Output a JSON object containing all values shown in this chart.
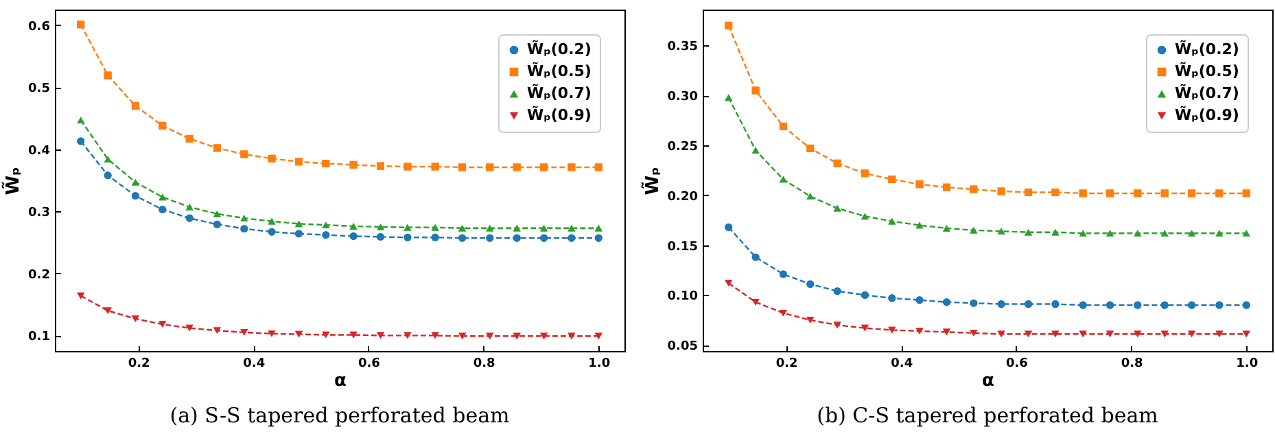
{
  "chart_data": [
    {
      "type": "line",
      "xlabel": "α",
      "ylabel": "W̃ₚ",
      "annotations": [
        "(a) S-S tapered perforated beam"
      ],
      "legend": "top right",
      "line_style": "dashed",
      "grid": false,
      "x": [
        0.1,
        0.147,
        0.195,
        0.242,
        0.289,
        0.337,
        0.384,
        0.432,
        0.479,
        0.526,
        0.574,
        0.621,
        0.668,
        0.716,
        0.763,
        0.811,
        0.858,
        0.905,
        0.953,
        1.0
      ],
      "xlim": [
        0.055,
        1.045
      ],
      "xticks": [
        0.2,
        0.4,
        0.6,
        0.8,
        {
          "value": 1.0,
          "label": "1.0"
        }
      ],
      "ylim": [
        0.075,
        0.625
      ],
      "yticks": [
        0.1,
        0.2,
        0.3,
        0.4,
        0.5,
        0.6
      ],
      "series": [
        {
          "name": "W̃ₚ(0.2)",
          "color": "#1f77b4",
          "marker": "circle",
          "values": [
            0.413,
            0.358,
            0.325,
            0.303,
            0.289,
            0.279,
            0.272,
            0.267,
            0.264,
            0.262,
            0.26,
            0.259,
            0.258,
            0.258,
            0.257,
            0.257,
            0.257,
            0.257,
            0.257,
            0.257
          ]
        },
        {
          "name": "W̃ₚ(0.5)",
          "color": "#ff7f0e",
          "marker": "square",
          "values": [
            0.601,
            0.519,
            0.47,
            0.438,
            0.417,
            0.402,
            0.392,
            0.385,
            0.38,
            0.377,
            0.375,
            0.373,
            0.372,
            0.372,
            0.371,
            0.371,
            0.371,
            0.371,
            0.371,
            0.371
          ]
        },
        {
          "name": "W̃ₚ(0.7)",
          "color": "#2ca02c",
          "marker": "triangle",
          "values": [
            0.447,
            0.384,
            0.347,
            0.323,
            0.307,
            0.296,
            0.289,
            0.284,
            0.28,
            0.278,
            0.276,
            0.275,
            0.274,
            0.274,
            0.273,
            0.273,
            0.273,
            0.273,
            0.273,
            0.273
          ]
        },
        {
          "name": "W̃ₚ(0.9)",
          "color": "#d62728",
          "marker": "triangle-down",
          "values": [
            0.164,
            0.14,
            0.127,
            0.118,
            0.112,
            0.108,
            0.105,
            0.103,
            0.102,
            0.101,
            0.101,
            0.1,
            0.1,
            0.1,
            0.099,
            0.099,
            0.099,
            0.099,
            0.099,
            0.099
          ]
        }
      ]
    },
    {
      "type": "line",
      "xlabel": "α",
      "ylabel": "W̃ₚ",
      "annotations": [
        "(b) C-S tapered perforated beam"
      ],
      "legend": "top right",
      "line_style": "dashed",
      "grid": false,
      "x": [
        0.1,
        0.147,
        0.195,
        0.242,
        0.289,
        0.337,
        0.384,
        0.432,
        0.479,
        0.526,
        0.574,
        0.621,
        0.668,
        0.716,
        0.763,
        0.811,
        0.858,
        0.905,
        0.953,
        1.0
      ],
      "xlim": [
        0.055,
        1.045
      ],
      "xticks": [
        0.2,
        0.4,
        0.6,
        0.8,
        {
          "value": 1.0,
          "label": "1.0"
        }
      ],
      "ylim": [
        0.044,
        0.386
      ],
      "yticks": [
        0.05,
        {
          "value": 0.1,
          "label": "0.10"
        },
        0.15,
        {
          "value": 0.2,
          "label": "0.20"
        },
        0.25,
        {
          "value": 0.3,
          "label": "0.30"
        },
        0.35
      ],
      "series": [
        {
          "name": "W̃ₚ(0.2)",
          "color": "#1f77b4",
          "marker": "circle",
          "values": [
            0.168,
            0.138,
            0.121,
            0.111,
            0.104,
            0.1,
            0.097,
            0.095,
            0.093,
            0.092,
            0.091,
            0.091,
            0.091,
            0.09,
            0.09,
            0.09,
            0.09,
            0.09,
            0.09,
            0.09
          ]
        },
        {
          "name": "W̃ₚ(0.5)",
          "color": "#ff7f0e",
          "marker": "square",
          "values": [
            0.37,
            0.305,
            0.269,
            0.247,
            0.232,
            0.222,
            0.216,
            0.211,
            0.208,
            0.206,
            0.204,
            0.203,
            0.203,
            0.202,
            0.202,
            0.202,
            0.202,
            0.202,
            0.202,
            0.202
          ]
        },
        {
          "name": "W̃ₚ(0.7)",
          "color": "#2ca02c",
          "marker": "triangle",
          "values": [
            0.298,
            0.245,
            0.216,
            0.199,
            0.187,
            0.179,
            0.174,
            0.17,
            0.167,
            0.165,
            0.164,
            0.163,
            0.163,
            0.162,
            0.162,
            0.162,
            0.162,
            0.162,
            0.162,
            0.162
          ]
        },
        {
          "name": "W̃ₚ(0.9)",
          "color": "#d62728",
          "marker": "triangle-down",
          "values": [
            0.112,
            0.093,
            0.082,
            0.075,
            0.07,
            0.067,
            0.065,
            0.064,
            0.063,
            0.062,
            0.061,
            0.061,
            0.061,
            0.061,
            0.061,
            0.061,
            0.061,
            0.061,
            0.061,
            0.061
          ]
        }
      ]
    }
  ]
}
